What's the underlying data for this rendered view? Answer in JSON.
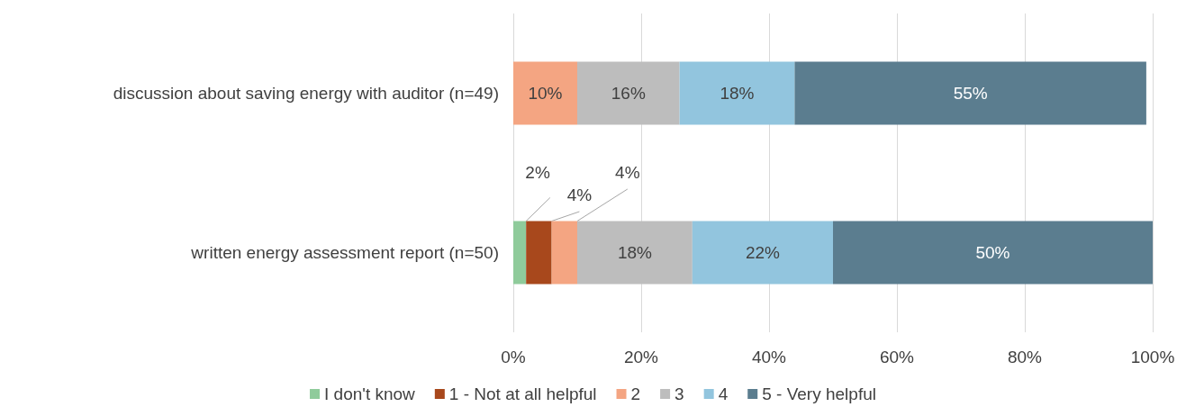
{
  "chart_data": {
    "type": "bar",
    "orientation": "horizontal",
    "stacked": true,
    "categories": [
      "discussion about saving energy with auditor (n=49)",
      "written energy assessment report (n=50)"
    ],
    "series": [
      {
        "name": "I don't know",
        "color": "#8fcb9b",
        "values": [
          0,
          2
        ],
        "value_labels": [
          null,
          "2%"
        ]
      },
      {
        "name": "1 - Not at all helpful",
        "color": "#a8481c",
        "values": [
          0,
          4
        ],
        "value_labels": [
          null,
          "4%"
        ]
      },
      {
        "name": "2",
        "color": "#f4a582",
        "values": [
          10,
          4
        ],
        "value_labels": [
          "10%",
          "4%"
        ]
      },
      {
        "name": "3",
        "color": "#bdbdbd",
        "values": [
          16,
          18
        ],
        "value_labels": [
          "16%",
          "18%"
        ]
      },
      {
        "name": "4",
        "color": "#92c5de",
        "values": [
          18,
          22
        ],
        "value_labels": [
          "18%",
          "22%"
        ]
      },
      {
        "name": "5 - Very helpful",
        "color": "#5b7d8f",
        "values": [
          55,
          50
        ],
        "value_labels": [
          "55%",
          "50%"
        ]
      }
    ],
    "xlim": [
      0,
      100
    ],
    "xticks": [
      {
        "value": 0,
        "label": "0%"
      },
      {
        "value": 20,
        "label": "20%"
      },
      {
        "value": 40,
        "label": "40%"
      },
      {
        "value": 60,
        "label": "60%"
      },
      {
        "value": 80,
        "label": "80%"
      },
      {
        "value": 100,
        "label": "100%"
      }
    ],
    "grid": "x",
    "legend": "bottom"
  }
}
